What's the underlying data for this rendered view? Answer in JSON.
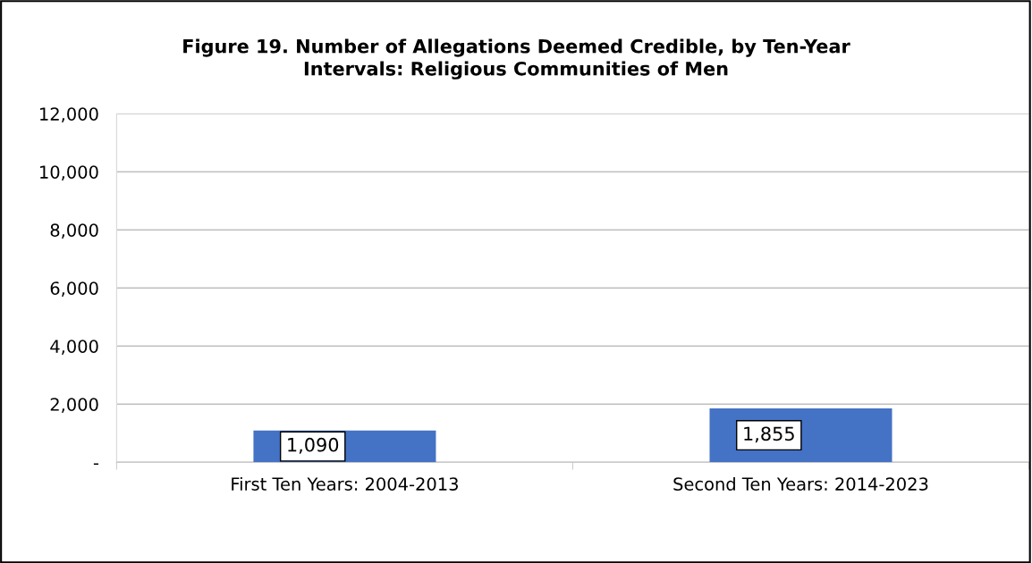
{
  "chart_data": {
    "type": "bar",
    "title": "Figure 19. Number of Allegations Deemed Credible, by Ten-Year\nIntervals: Religious Communities of Men",
    "categories": [
      "First Ten Years: 2004-2013",
      "Second Ten Years: 2014-2023"
    ],
    "values": [
      1090,
      1855
    ],
    "value_labels": [
      "1,090",
      "1,855"
    ],
    "color": "#4472c4",
    "ylim": [
      0,
      12000
    ],
    "yticks": [
      {
        "value": 0,
        "label": "-"
      },
      {
        "value": 2000,
        "label": "2,000"
      },
      {
        "value": 4000,
        "label": "4,000"
      },
      {
        "value": 6000,
        "label": "6,000"
      },
      {
        "value": 8000,
        "label": "8,000"
      },
      {
        "value": 10000,
        "label": "10,000"
      },
      {
        "value": 12000,
        "label": "12,000"
      }
    ],
    "grid": "y"
  }
}
